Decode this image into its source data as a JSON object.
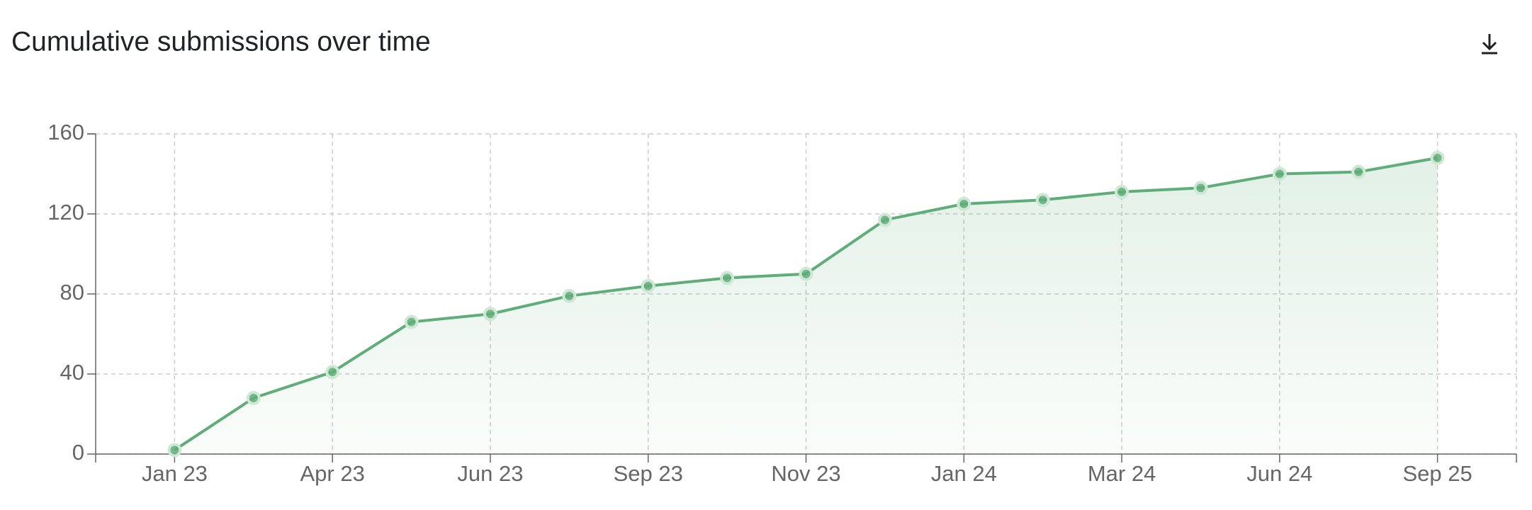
{
  "chart_data": {
    "type": "line",
    "title": "Cumulative submissions over time",
    "categories": [
      "Jan 23",
      null,
      "Apr 23",
      null,
      "Jun 23",
      null,
      "Sep 23",
      null,
      "Nov 23",
      null,
      "Jan 24",
      null,
      "Mar 24",
      null,
      "Jun 24",
      null,
      "Sep 25"
    ],
    "series": [
      {
        "name": "Submissions",
        "color": "#5fad78",
        "values": [
          2,
          28,
          41,
          66,
          70,
          79,
          84,
          88,
          90,
          117,
          125,
          127,
          131,
          133,
          140,
          141,
          148
        ]
      }
    ],
    "ylim": [
      0,
      160
    ],
    "yticks": [
      0,
      40,
      80,
      120,
      160
    ],
    "grid": true
  }
}
